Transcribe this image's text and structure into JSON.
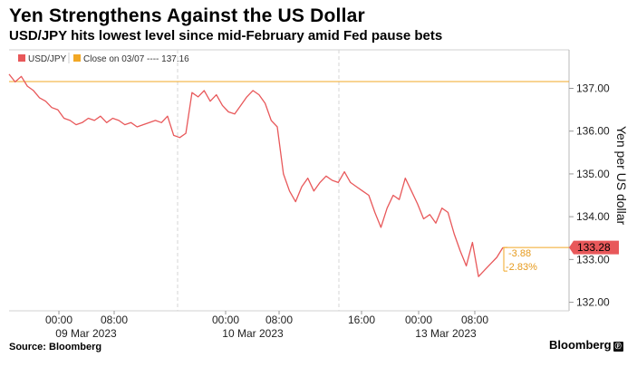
{
  "header": {
    "title": "Yen Strengthens Against the US Dollar",
    "subtitle": "USD/JPY hits lowest level since mid-February amid Fed pause bets"
  },
  "footer": {
    "source": "Source: Bloomberg",
    "brand": "Bloomberg",
    "brand_icon": "ⓟ"
  },
  "colors": {
    "series": "#e8585a",
    "reference": "#f2a826",
    "grid": "#cccccc",
    "axis": "#b8b8b8"
  },
  "chart_data": {
    "type": "line",
    "title": "Yen Strengthens Against the US Dollar",
    "ylabel": "Yen per US dollar",
    "ylim": [
      131.8,
      137.9
    ],
    "y_ticks": [
      132.0,
      133.0,
      134.0,
      135.0,
      136.0,
      137.0
    ],
    "y_tick_labels": [
      "132.00",
      "133.00",
      "134.00",
      "135.00",
      "136.00",
      "137.00"
    ],
    "x_tick_labels": [
      {
        "time": "00:00",
        "date": "09 Mar 2023"
      },
      {
        "time": "08:00",
        "date": ""
      },
      {
        "time": "00:00",
        "date": "10 Mar 2023"
      },
      {
        "time": "08:00",
        "date": ""
      },
      {
        "time": "16:00",
        "date": ""
      },
      {
        "time": "00:00",
        "date": "13 Mar 2023"
      },
      {
        "time": "08:00",
        "date": ""
      }
    ],
    "legend": {
      "series_label": "USD/JPY",
      "reference_label": "Close on 03/07 ---- 137.16"
    },
    "reference_close": 137.16,
    "last_value": 133.28,
    "last_value_label": "133.28",
    "change": "-3.88",
    "change_pct": "-2.83%",
    "series": [
      {
        "name": "USD/JPY",
        "values": [
          137.33,
          137.15,
          137.28,
          137.05,
          136.95,
          136.78,
          136.7,
          136.55,
          136.5,
          136.3,
          136.25,
          136.15,
          136.2,
          136.3,
          136.25,
          136.35,
          136.2,
          136.3,
          136.25,
          136.15,
          136.2,
          136.1,
          136.15,
          136.2,
          136.25,
          136.2,
          136.35,
          135.9,
          135.85,
          135.95,
          136.9,
          136.8,
          136.95,
          136.7,
          136.85,
          136.6,
          136.45,
          136.4,
          136.6,
          136.8,
          136.95,
          136.85,
          136.65,
          136.25,
          136.1,
          135.0,
          134.6,
          134.35,
          134.7,
          134.9,
          134.6,
          134.8,
          134.95,
          134.85,
          134.8,
          135.05,
          134.8,
          134.7,
          134.6,
          134.5,
          134.1,
          133.75,
          134.2,
          134.5,
          134.4,
          134.9,
          134.6,
          134.3,
          133.95,
          134.05,
          133.85,
          134.2,
          134.1,
          133.6,
          133.2,
          132.85,
          133.4,
          132.6,
          132.75,
          132.9,
          133.05,
          133.28
        ]
      }
    ]
  }
}
